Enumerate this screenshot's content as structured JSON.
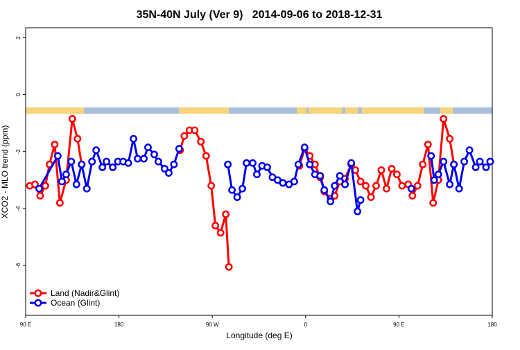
{
  "chart_data": {
    "type": "line",
    "title": "35N-40N July (Ver 9)   2014-09-06 to 2018-12-31",
    "x_label": "Longitude (deg E)",
    "y_label": "XCO2 - MLO trend (ppm)",
    "xlim": [
      90,
      540
    ],
    "xticks": [
      {
        "value": 90,
        "label": "90 E"
      },
      {
        "value": 180,
        "label": "180"
      },
      {
        "value": 270,
        "label": "90 W"
      },
      {
        "value": 360,
        "label": "0"
      },
      {
        "value": 450,
        "label": "90 E"
      },
      {
        "value": 540,
        "label": "180"
      }
    ],
    "ylim": [
      -7.75,
      2.35
    ],
    "yticks": [
      -6,
      -4,
      -2,
      0,
      2
    ],
    "legend": "bottom-left",
    "series": [
      {
        "name": "Land (Nadir&Glint)",
        "color": "#ff0000",
        "x": [
          94,
          99,
          104,
          109,
          113,
          118,
          123,
          129,
          135,
          140,
          144,
          190,
          239,
          243,
          248,
          253,
          259,
          264,
          269,
          273,
          278,
          283,
          286,
          320,
          354,
          359,
          364,
          369,
          374,
          378,
          384,
          388,
          393,
          398,
          404,
          408,
          413,
          418,
          423,
          428,
          433,
          438,
          443,
          448,
          453,
          459,
          463,
          468,
          473,
          478,
          483,
          488,
          493,
          499,
          503
        ],
        "values": [
          -3.2,
          -3.15,
          -3.55,
          -3.2,
          -2.45,
          -1.75,
          -3.8,
          -3.0,
          -0.85,
          -1.55,
          -2.45,
          null,
          -1.95,
          -1.45,
          -1.25,
          -1.25,
          -1.65,
          -2.15,
          -3.2,
          -4.6,
          -4.85,
          -4.2,
          -6.05,
          null,
          -2.5,
          -1.9,
          -2.15,
          -2.45,
          -2.9,
          -3.4,
          -3.65,
          -3.55,
          -3.05,
          -2.95,
          -2.45,
          -2.65,
          -3.05,
          -3.2,
          -3.6,
          -3.2,
          -2.65,
          -3.3,
          -2.6,
          -2.8,
          -3.2,
          -3.15,
          -3.55,
          -3.2,
          -2.45,
          -1.75,
          -3.8,
          -3.0,
          -0.85,
          -1.55,
          -2.45
        ]
      },
      {
        "name": "Ocean (Glint)",
        "color": "#0000ee",
        "x": [
          103,
          121,
          125,
          129,
          134,
          139,
          144,
          149,
          154,
          158,
          164,
          168,
          174,
          179,
          184,
          189,
          194,
          198,
          204,
          208,
          214,
          218,
          224,
          228,
          233,
          238,
          260,
          285,
          289,
          294,
          299,
          303,
          309,
          313,
          318,
          323,
          328,
          333,
          338,
          344,
          349,
          353,
          359,
          364,
          369,
          374,
          378,
          384,
          388,
          393,
          398,
          404,
          410,
          413,
          440,
          462,
          470,
          481,
          484,
          488,
          493,
          499,
          503,
          508,
          513,
          518,
          524,
          528,
          534,
          538
        ],
        "values": [
          -3.3,
          -2.15,
          -3.05,
          -2.8,
          -2.35,
          -3.15,
          -2.45,
          -3.3,
          -2.35,
          -1.95,
          -2.55,
          -2.35,
          -2.55,
          -2.35,
          -2.35,
          -2.4,
          -1.55,
          -2.25,
          -2.25,
          -1.85,
          -2.1,
          -2.35,
          -2.6,
          -2.75,
          -2.45,
          -1.9,
          null,
          -2.45,
          -3.35,
          -3.6,
          -3.3,
          -2.4,
          -2.4,
          -2.8,
          -2.5,
          -2.55,
          -2.9,
          -3.0,
          -3.1,
          -3.15,
          -3.05,
          -2.45,
          -1.85,
          -2.45,
          -2.8,
          -2.85,
          -3.35,
          -3.75,
          -3.2,
          -2.85,
          -3.15,
          -2.4,
          -4.1,
          -3.7,
          null,
          -3.3,
          null,
          -2.15,
          -3.0,
          -2.8,
          -2.35,
          -3.15,
          -2.45,
          -3.3,
          -2.35,
          -1.95,
          -2.55,
          -2.35,
          -2.55,
          -2.35
        ]
      }
    ]
  }
}
